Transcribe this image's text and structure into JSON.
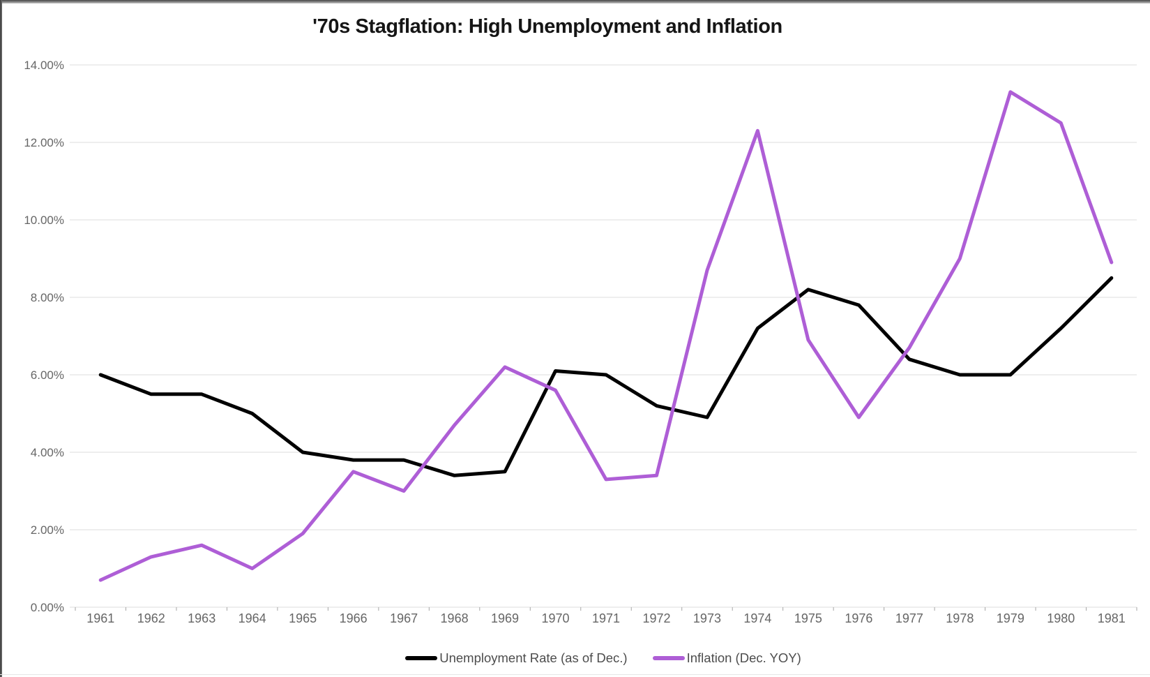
{
  "window": {
    "top_edge_color": "#474747",
    "left_edge_color": "#3c3c3c",
    "bottom_edge_color": "#e7e7e7"
  },
  "chart_data": {
    "type": "line",
    "title": "'70s Stagflation: High Unemployment and Inflation",
    "xlabel": "",
    "ylabel": "",
    "categories": [
      "1961",
      "1962",
      "1963",
      "1964",
      "1965",
      "1966",
      "1967",
      "1968",
      "1969",
      "1970",
      "1971",
      "1972",
      "1973",
      "1974",
      "1975",
      "1976",
      "1977",
      "1978",
      "1979",
      "1980",
      "1981"
    ],
    "series": [
      {
        "name": "Unemployment Rate (as of Dec.)",
        "color": "#000000",
        "values": [
          6.0,
          5.5,
          5.5,
          5.0,
          4.0,
          3.8,
          3.8,
          3.4,
          3.5,
          6.1,
          6.0,
          5.2,
          4.9,
          7.2,
          8.2,
          7.8,
          6.4,
          6.0,
          6.0,
          7.2,
          8.5
        ]
      },
      {
        "name": "Inflation (Dec. YOY)",
        "color": "#ae5ed6",
        "values": [
          0.7,
          1.3,
          1.6,
          1.0,
          1.9,
          3.5,
          3.0,
          4.7,
          6.2,
          5.6,
          3.3,
          3.4,
          8.7,
          12.3,
          6.9,
          4.9,
          6.7,
          9.0,
          13.3,
          12.5,
          8.9
        ]
      }
    ],
    "ylim": [
      0,
      14
    ],
    "y_tick_step": 2,
    "y_tick_labels": [
      "0.00%",
      "2.00%",
      "4.00%",
      "6.00%",
      "8.00%",
      "10.00%",
      "12.00%",
      "14.00%"
    ],
    "grid": true,
    "gridline_color": "#dedede",
    "axis_tick_color": "#a6a6a6",
    "axis_label_color": "#666666",
    "legend_position": "bottom",
    "line_width": 5
  }
}
